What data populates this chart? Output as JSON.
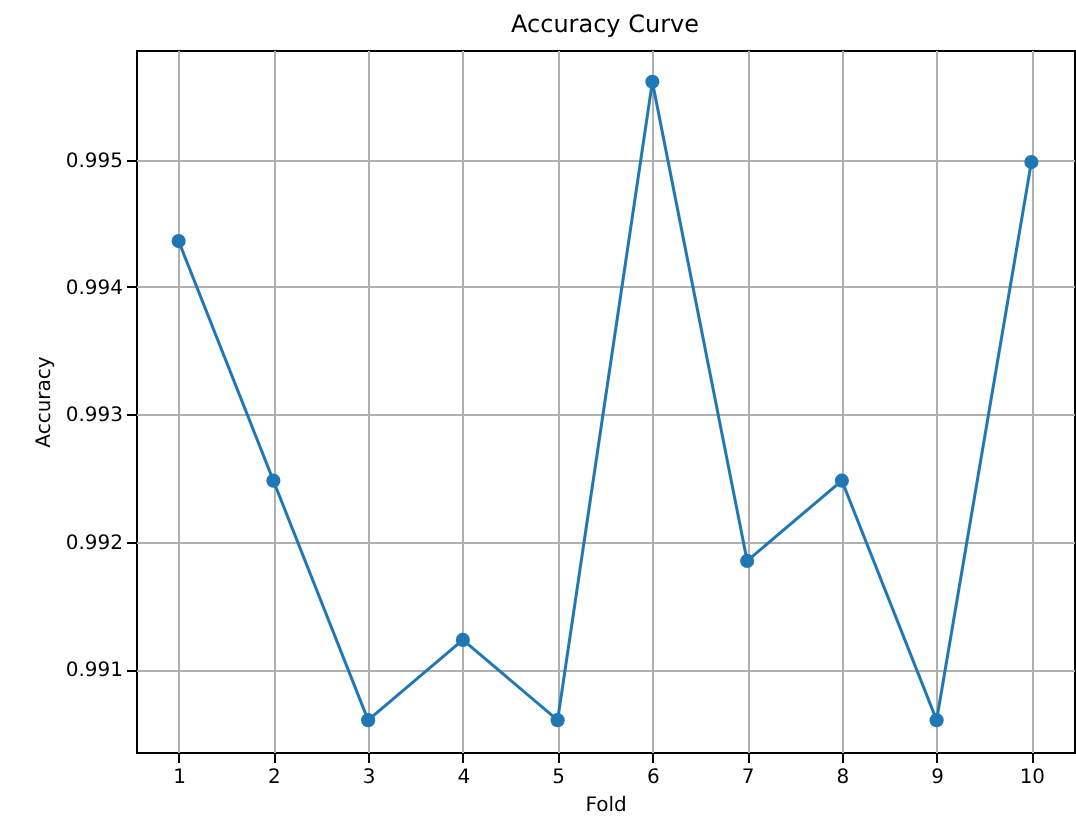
{
  "chart_data": {
    "type": "line",
    "title": "Accuracy Curve",
    "xlabel": "Fold",
    "ylabel": "Accuracy",
    "x": [
      1,
      2,
      3,
      4,
      5,
      6,
      7,
      8,
      9,
      10
    ],
    "series": [
      {
        "color": "#1f77b4",
        "values": [
          0.99436,
          0.99248,
          0.9906,
          0.99123,
          0.9906,
          0.99561,
          0.99185,
          0.99248,
          0.9906,
          0.99498
        ]
      }
    ],
    "xlim": [
      0.55,
      10.45
    ],
    "xticks": [
      1,
      2,
      3,
      4,
      5,
      6,
      7,
      8,
      9,
      10
    ],
    "ylim": [
      0.99035,
      0.99586
    ],
    "yticks": [
      0.991,
      0.992,
      0.993,
      0.994,
      0.995
    ],
    "grid": true,
    "marker": "circle",
    "line_style": "solid"
  }
}
